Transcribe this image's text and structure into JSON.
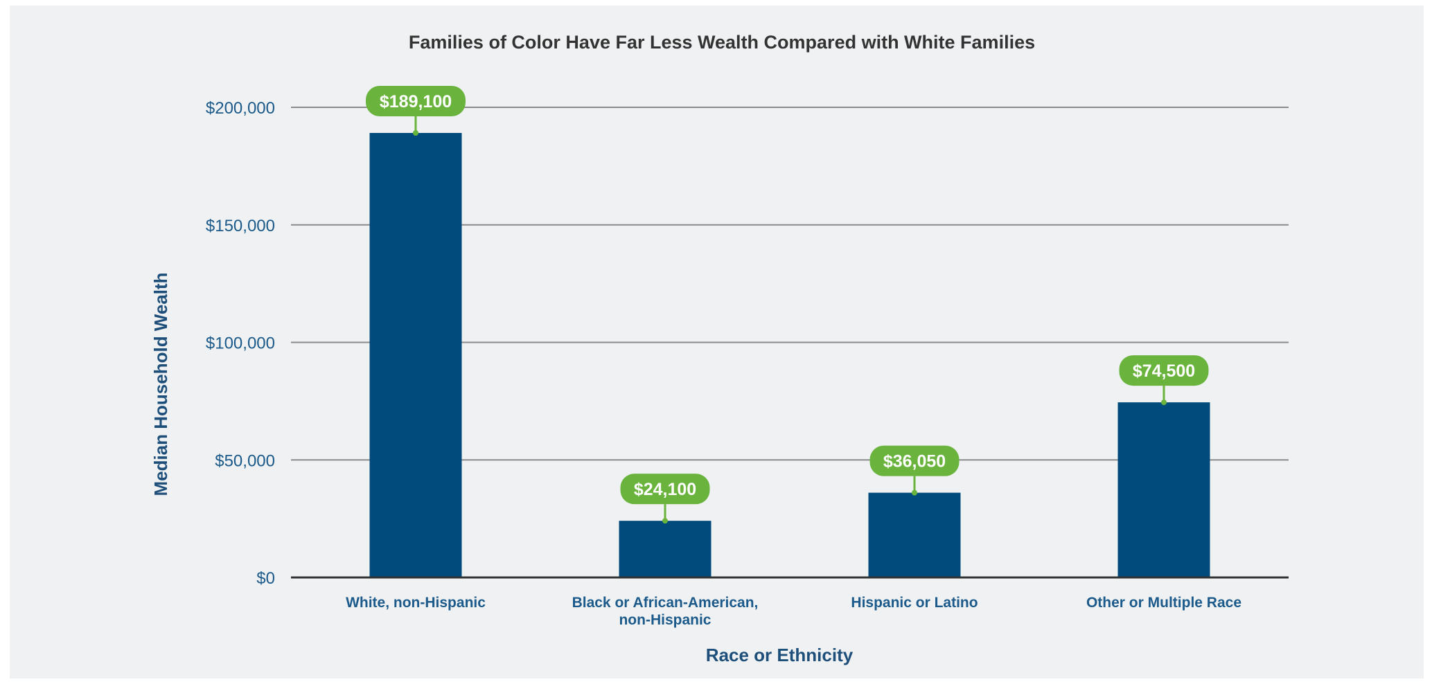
{
  "chart_data": {
    "type": "bar",
    "title": "Families of Color Have Far Less Wealth Compared with White Families",
    "xlabel": "Race or Ethnicity",
    "ylabel": "Median Household Wealth",
    "categories": [
      [
        "White, non-Hispanic"
      ],
      [
        "Black or African-American,",
        "non-Hispanic"
      ],
      [
        "Hispanic or Latino"
      ],
      [
        "Other or Multiple Race"
      ]
    ],
    "values": [
      189100,
      24100,
      36050,
      74500
    ],
    "data_labels": [
      "$189,100",
      "$24,100",
      "$36,050",
      "$74,500"
    ],
    "ylim": [
      0,
      200000
    ],
    "yticks": [
      0,
      50000,
      100000,
      150000,
      200000
    ],
    "ytick_labels": [
      "$0",
      "$50,000",
      "$100,000",
      "$150,000",
      "$200,000"
    ],
    "grid": true,
    "legend": "none",
    "colors": {
      "bar": "#004a7c",
      "label_bubble": "#6ab43e",
      "gridline": "#8a8a8a",
      "axis": "#333333",
      "background": "#eff1f2"
    }
  }
}
